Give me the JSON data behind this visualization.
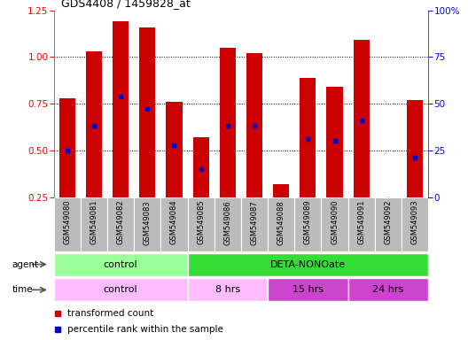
{
  "title": "GDS4408 / 1459828_at",
  "samples": [
    "GSM549080",
    "GSM549081",
    "GSM549082",
    "GSM549083",
    "GSM549084",
    "GSM549085",
    "GSM549086",
    "GSM549087",
    "GSM549088",
    "GSM549089",
    "GSM549090",
    "GSM549091",
    "GSM549092",
    "GSM549093"
  ],
  "red_values": [
    0.78,
    1.03,
    1.19,
    1.16,
    0.76,
    0.57,
    1.05,
    1.02,
    0.32,
    0.89,
    0.84,
    1.09,
    0.25,
    0.77
  ],
  "blue_values": [
    0.5,
    0.63,
    0.79,
    0.72,
    0.53,
    0.4,
    0.63,
    0.63,
    0.24,
    0.56,
    0.55,
    0.66,
    0.24,
    0.46
  ],
  "ylim_left": [
    0.25,
    1.25
  ],
  "ylim_right": [
    0,
    100
  ],
  "yticks_left": [
    0.25,
    0.5,
    0.75,
    1.0,
    1.25
  ],
  "yticks_right": [
    0,
    25,
    50,
    75,
    100
  ],
  "ytick_labels_right": [
    "0",
    "25",
    "50",
    "75",
    "100%"
  ],
  "bar_color": "#cc0000",
  "dot_color": "#0000cc",
  "agent_groups": [
    {
      "label": "control",
      "start": 0,
      "end": 5,
      "color": "#99ff99"
    },
    {
      "label": "DETA-NONOate",
      "start": 5,
      "end": 14,
      "color": "#33dd33"
    }
  ],
  "time_groups": [
    {
      "label": "control",
      "start": 0,
      "end": 5,
      "color": "#ffbbff"
    },
    {
      "label": "8 hrs",
      "start": 5,
      "end": 8,
      "color": "#ffbbff"
    },
    {
      "label": "15 hrs",
      "start": 8,
      "end": 11,
      "color": "#cc44cc"
    },
    {
      "label": "24 hrs",
      "start": 11,
      "end": 14,
      "color": "#cc44cc"
    }
  ],
  "legend_red": "transformed count",
  "legend_blue": "percentile rank within the sample",
  "background_color": "#ffffff",
  "grid_dotted_color": "#333333",
  "sample_bg": "#bbbbbb"
}
